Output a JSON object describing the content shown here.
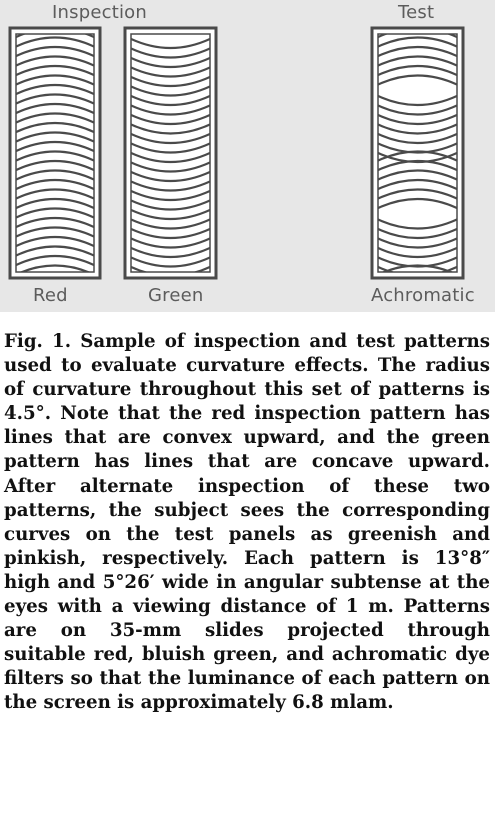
{
  "figure": {
    "header_labels": {
      "left": "Inspection",
      "right": "Test"
    },
    "panel_labels": {
      "red": "Red",
      "green": "Green",
      "achromatic": "Achromatic"
    },
    "panels": [
      {
        "name": "red",
        "curvature": "convex-upward"
      },
      {
        "name": "green",
        "curvature": "concave-upward"
      },
      {
        "name": "achromatic",
        "curvature": "test-alternating"
      }
    ],
    "colors": {
      "background": "#e7e7e7",
      "panel_fill": "#ffffff",
      "line": "#4a4a4a",
      "label": "#5c5c5c"
    }
  },
  "caption": {
    "fig_ref": "Fig. 1.",
    "text": "Sample of inspection and test patterns used to evaluate curvature effects. The radius of curvature throughout this set of patterns is 4.5°. Note that the red inspection pattern has lines that are convex upward, and the green pattern has lines that are concave upward. After alternate inspection of these two patterns, the subject sees the corresponding curves on the test panels as greenish and pinkish, respectively. Each pattern is 13°8″ high and 5°26′ wide in angular subtense at the eyes with a viewing distance of 1 m. Patterns are on 35-mm slides projected through suitable red, bluish green, and achromatic dye filters so that the luminance of each pattern on the screen is approximately 6.8 mlam."
  }
}
